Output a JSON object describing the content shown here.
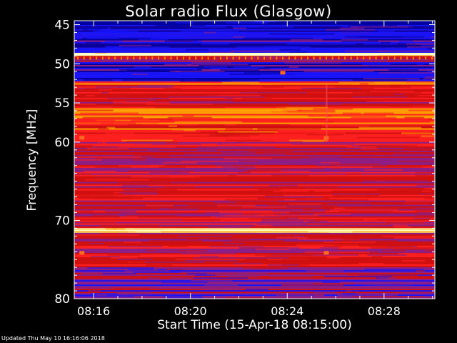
{
  "chart_data": {
    "type": "heatmap",
    "title": "Solar radio Flux (Glasgow)",
    "xlabel": "Start Time (15-Apr-18 08:15:00)",
    "ylabel": "Frequency [MHz]",
    "x_ticks": [
      "08:16",
      "08:20",
      "08:24",
      "08:28"
    ],
    "x_tick_minutes": [
      1,
      5,
      9,
      13
    ],
    "xlim_minutes": [
      0.2,
      15.1
    ],
    "y_ticks": [
      45,
      50,
      55,
      60,
      70,
      80
    ],
    "ylim": [
      44.5,
      80
    ],
    "y_axis_inverted": true,
    "colormap": [
      "#0000a0",
      "#1414ff",
      "#8a1f8a",
      "#d01010",
      "#ff2020",
      "#ffa000",
      "#ffffa0"
    ],
    "bands": [
      {
        "from": 44.5,
        "to": 45.2,
        "level": "low-dark"
      },
      {
        "from": 45.2,
        "to": 48.6,
        "level": "low"
      },
      {
        "from": 48.6,
        "to": 49.0,
        "level": "very-high"
      },
      {
        "from": 49.0,
        "to": 49.8,
        "level": "medium"
      },
      {
        "from": 49.8,
        "to": 52.3,
        "level": "low"
      },
      {
        "from": 52.3,
        "to": 52.7,
        "level": "high"
      },
      {
        "from": 52.7,
        "to": 55.5,
        "level": "medium"
      },
      {
        "from": 55.5,
        "to": 60.0,
        "level": "medium-high"
      },
      {
        "from": 60.0,
        "to": 64.0,
        "level": "mixed"
      },
      {
        "from": 64.0,
        "to": 71.0,
        "level": "medium"
      },
      {
        "from": 71.0,
        "to": 71.6,
        "level": "very-high"
      },
      {
        "from": 71.6,
        "to": 76.0,
        "level": "medium"
      },
      {
        "from": 76.0,
        "to": 80.0,
        "level": "mixed-low"
      }
    ]
  },
  "footer": {
    "updated": "Updated Thu May 10 16:16:06 2018"
  }
}
